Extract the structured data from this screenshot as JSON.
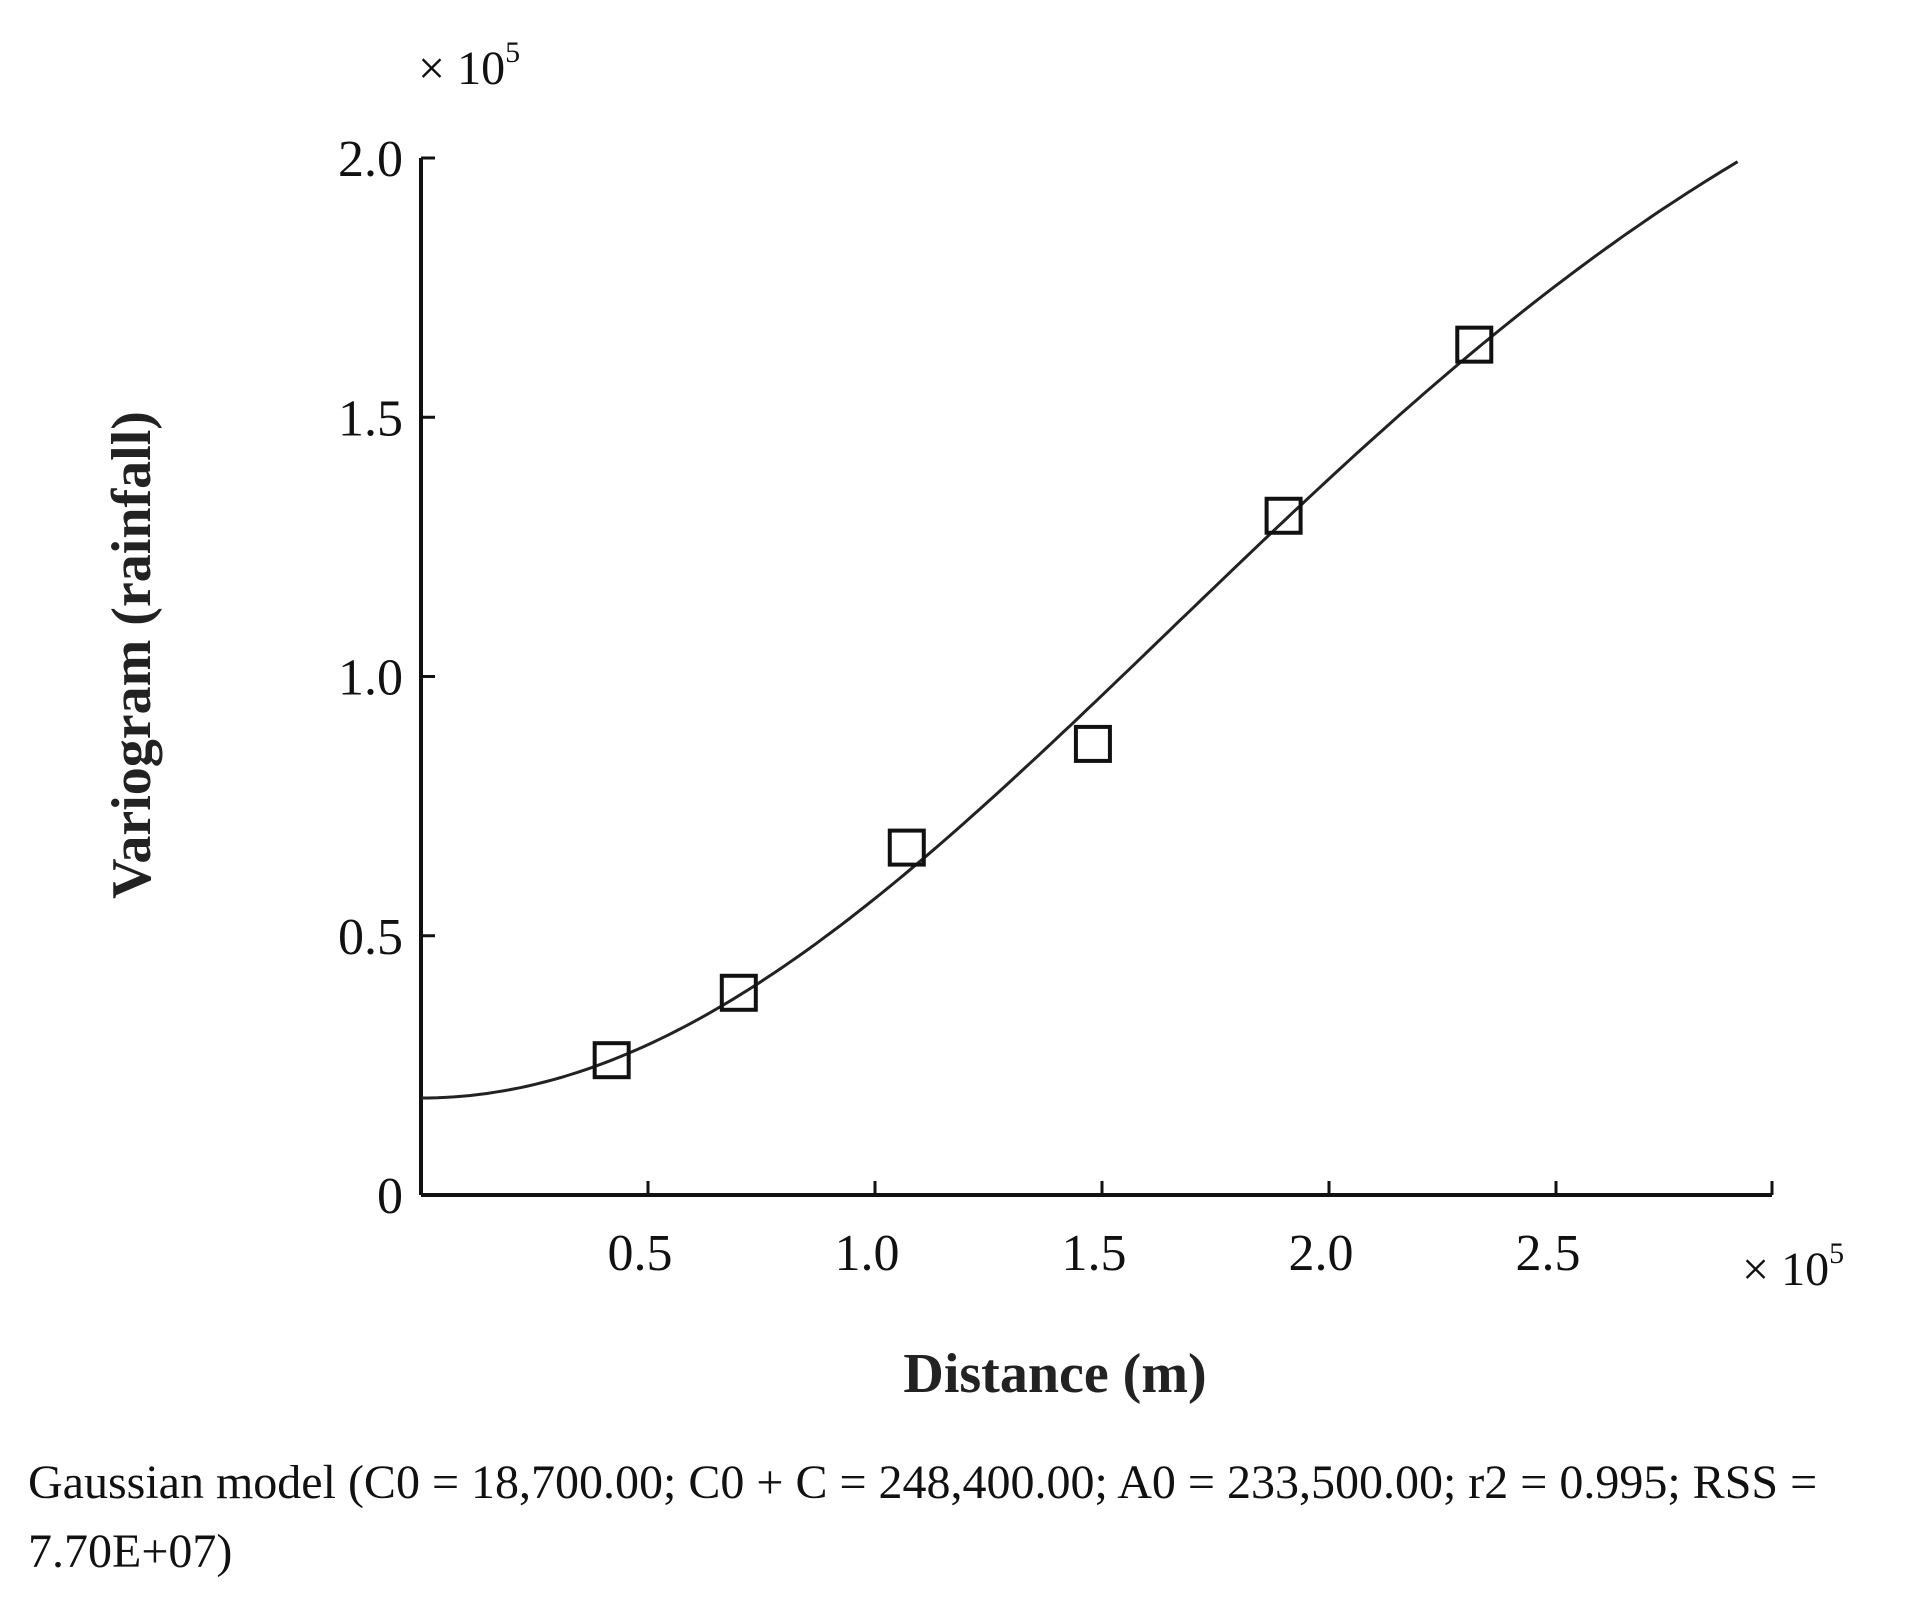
{
  "chart_data": {
    "type": "scatter",
    "title": "",
    "xlabel": "Distance (m)",
    "ylabel": "Variogram (rainfall)",
    "x_multiplier": "× 10",
    "y_multiplier": "× 10",
    "multiplier_exponent": "5",
    "xlim": [
      0,
      3.0
    ],
    "ylim": [
      0,
      2.0
    ],
    "x_ticks": [
      0.5,
      1.0,
      1.5,
      2.0,
      2.5
    ],
    "x_tick_labels": [
      "0.5",
      "1.0",
      "1.5",
      "2.0",
      "2.5"
    ],
    "y_ticks": [
      0,
      0.5,
      1.0,
      1.5,
      2.0
    ],
    "y_tick_labels": [
      "0",
      "0.5",
      "1.0",
      "1.5",
      "2.0"
    ],
    "grid": false,
    "series": [
      {
        "marker": "open-square",
        "x": [
          0.42,
          0.7,
          1.07,
          1.48,
          1.9,
          2.32
        ],
        "y": [
          0.26,
          0.39,
          0.67,
          0.87,
          1.31,
          1.64
        ]
      }
    ],
    "model": {
      "kind": "gaussian",
      "nugget": 0.187,
      "sill": 2.484,
      "range": 2.335,
      "x_max": 2.9
    },
    "caption": "Gaussian model (C0 = 18,700.00; C0 + C = 248,400.00; A0 = 233,500.00; r2 = 0.995; RSS = 7.70E+07)"
  }
}
